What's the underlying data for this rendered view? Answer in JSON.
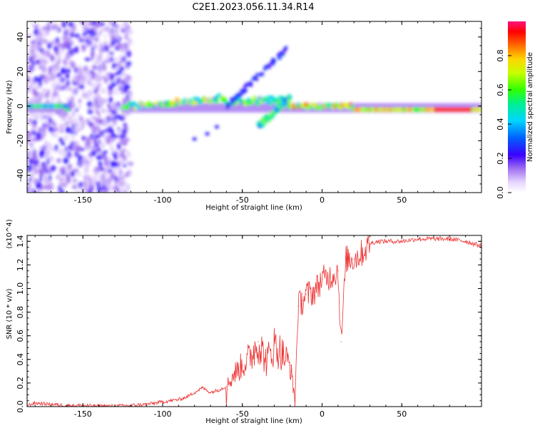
{
  "title": "C2E1.2023.056.11.34.R14",
  "chart_data": [
    {
      "type": "heatmap",
      "name": "spectrogram",
      "xlabel": "Height of straight line (km)",
      "ylabel": "Frequency (Hz)",
      "xlim": [
        -185,
        100
      ],
      "ylim": [
        -50,
        49
      ],
      "x_ticks": [
        -150,
        -100,
        -50,
        0,
        50
      ],
      "y_ticks": [
        -40,
        -20,
        0,
        20,
        40
      ],
      "colorbar": {
        "label": "Normalized spectral amplitude",
        "range": [
          0,
          1
        ],
        "ticks": [
          0.0,
          0.2,
          0.4,
          0.6,
          0.8
        ]
      },
      "features": [
        {
          "name": "noise-band",
          "x_range": [
            -185,
            -120
          ],
          "freq_range": [
            -50,
            49
          ],
          "amplitude": 0.15
        },
        {
          "name": "main-carrier",
          "x_range": [
            -185,
            100
          ],
          "freq_center": 0,
          "amplitude_range": [
            0.2,
            1.0
          ]
        },
        {
          "name": "upper-branch",
          "x_range": [
            -60,
            -22
          ],
          "freq_range": [
            0,
            33
          ],
          "amplitude": 0.3
        },
        {
          "name": "lower-branch",
          "x_range": [
            -40,
            -20
          ],
          "freq_range": [
            -12,
            5
          ],
          "amplitude": 0.55
        }
      ]
    },
    {
      "type": "line",
      "name": "snr",
      "xlabel": "Height of straight line (km)",
      "ylabel": "SNR (10 * v/v)",
      "y_multiplier": "(x10^4)",
      "xlim": [
        -185,
        100
      ],
      "ylim": [
        0,
        1.45
      ],
      "x_ticks": [
        -150,
        -100,
        -50,
        0,
        50
      ],
      "y_ticks": [
        0.0,
        0.2,
        0.4,
        0.6,
        0.8,
        1.0,
        1.2,
        1.4
      ],
      "color": "#ee3333",
      "series": [
        {
          "name": "SNR",
          "x": [
            -185,
            -180,
            -170,
            -160,
            -150,
            -140,
            -130,
            -120,
            -110,
            -100,
            -95,
            -90,
            -85,
            -80,
            -75,
            -70,
            -65,
            -60,
            -55,
            -50,
            -45,
            -40,
            -35,
            -30,
            -25,
            -20,
            -17,
            -15,
            -12,
            -10,
            -5,
            0,
            5,
            10,
            12,
            15,
            20,
            25,
            30,
            35,
            40,
            50,
            60,
            70,
            80,
            90,
            100
          ],
          "values": [
            0.01,
            0.03,
            0.02,
            0.01,
            0.01,
            0.005,
            0.005,
            0.01,
            0.02,
            0.04,
            0.05,
            0.06,
            0.08,
            0.12,
            0.16,
            0.12,
            0.14,
            0.17,
            0.28,
            0.35,
            0.42,
            0.55,
            0.38,
            0.52,
            0.45,
            0.35,
            0.05,
            0.85,
            0.9,
            0.95,
            0.97,
            1.08,
            1.1,
            1.15,
            0.55,
            1.25,
            1.25,
            1.3,
            1.38,
            1.4,
            1.4,
            1.4,
            1.42,
            1.42,
            1.42,
            1.4,
            1.36
          ]
        }
      ]
    }
  ]
}
